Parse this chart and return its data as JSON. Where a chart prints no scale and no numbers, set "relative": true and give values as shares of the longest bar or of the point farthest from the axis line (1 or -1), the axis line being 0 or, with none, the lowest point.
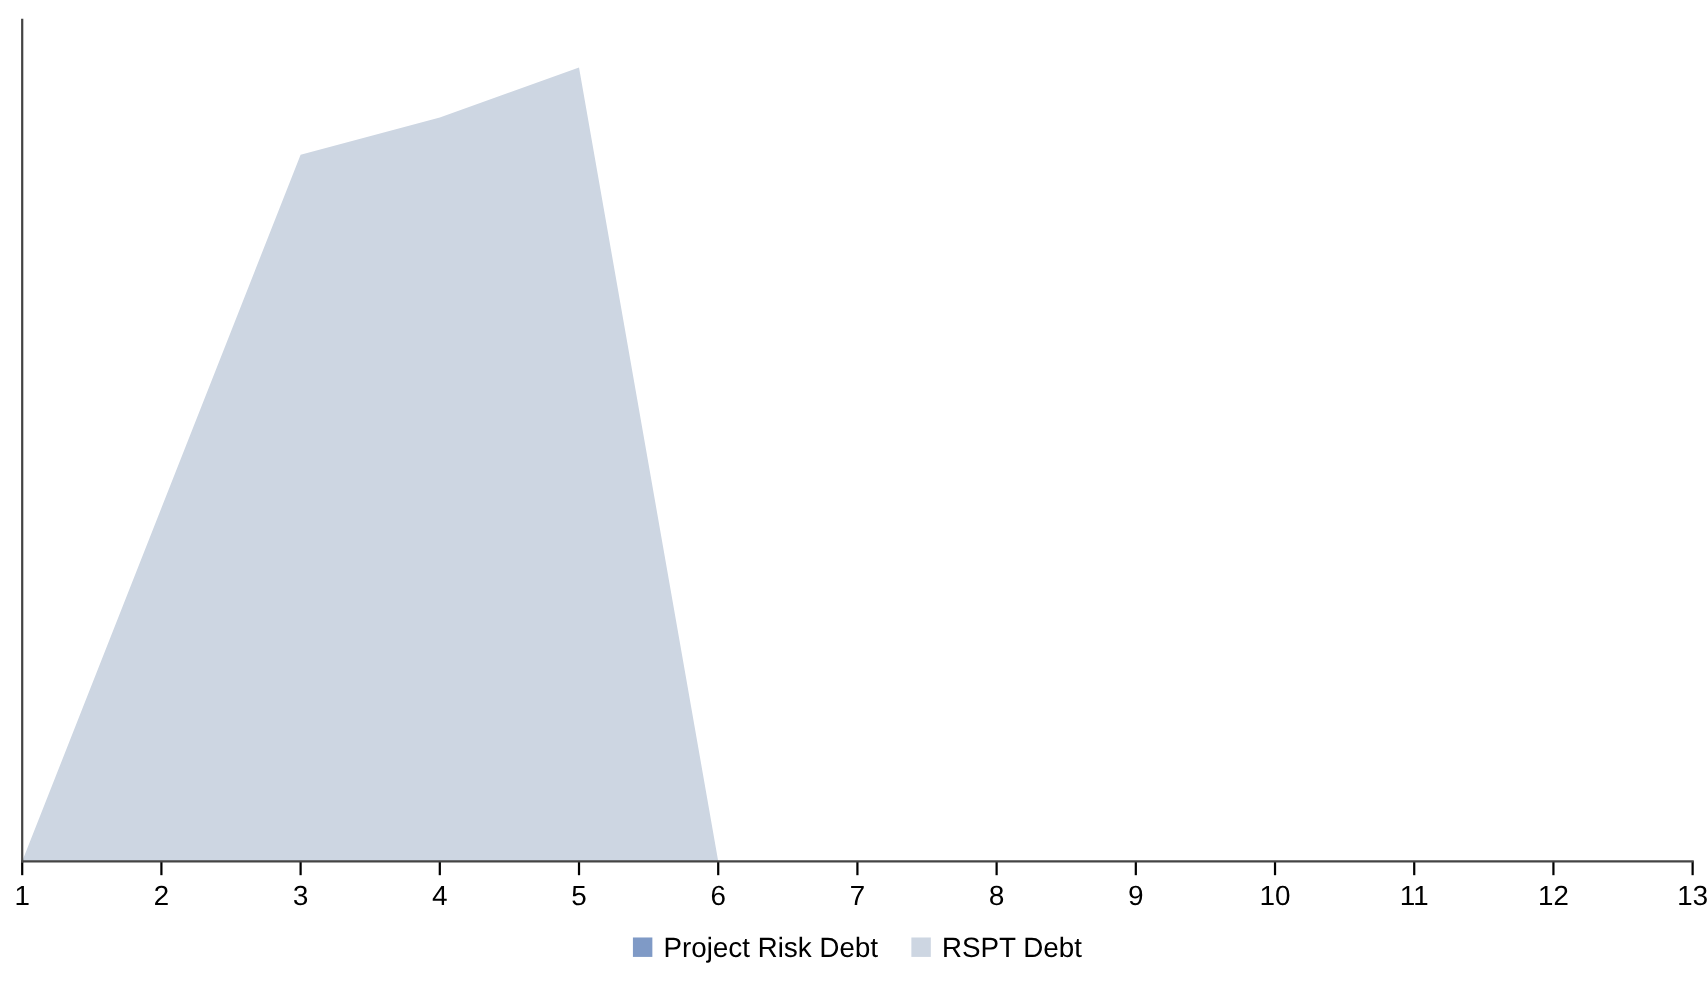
{
  "chart_data": {
    "type": "area",
    "relative": true,
    "categories": [
      "1",
      "2",
      "3",
      "4",
      "5",
      "6",
      "7",
      "8",
      "9",
      "10",
      "11",
      "12",
      "13"
    ],
    "series": [
      {
        "name": "Project Risk Debt",
        "color": "#7f9ac6",
        "values": [
          null,
          null,
          null,
          null,
          null,
          null,
          null,
          null,
          null,
          null,
          null,
          null,
          null
        ]
      },
      {
        "name": "RSPT Debt",
        "color": "#cdd6e2",
        "values": [
          0,
          0.445,
          0.89,
          0.937,
          1,
          0,
          0,
          0,
          0,
          0,
          0,
          0,
          0
        ]
      }
    ],
    "legend": "bottom",
    "grid": false
  }
}
